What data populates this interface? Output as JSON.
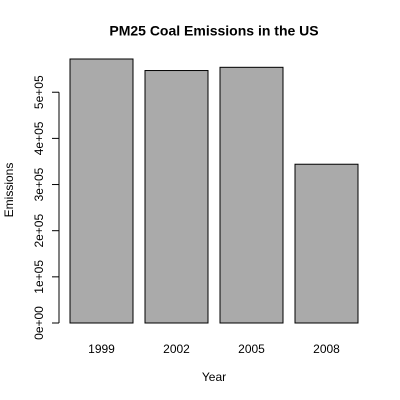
{
  "chart_data": {
    "type": "bar",
    "title": "PM25 Coal Emissions in the US",
    "xlabel": "Year",
    "ylabel": "Emissions",
    "categories": [
      "1999",
      "2002",
      "2005",
      "2008"
    ],
    "values": [
      572000,
      547000,
      554000,
      344000
    ],
    "color": "#aaaaaa",
    "ylim": [
      0,
      572000
    ],
    "yticks": [
      {
        "value": 0,
        "label": "0e+00"
      },
      {
        "value": 100000,
        "label": "1e+05"
      },
      {
        "value": 200000,
        "label": "2e+05"
      },
      {
        "value": 300000,
        "label": "3e+05"
      },
      {
        "value": 400000,
        "label": "4e+05"
      },
      {
        "value": 500000,
        "label": "5e+05"
      }
    ],
    "grid": false
  }
}
